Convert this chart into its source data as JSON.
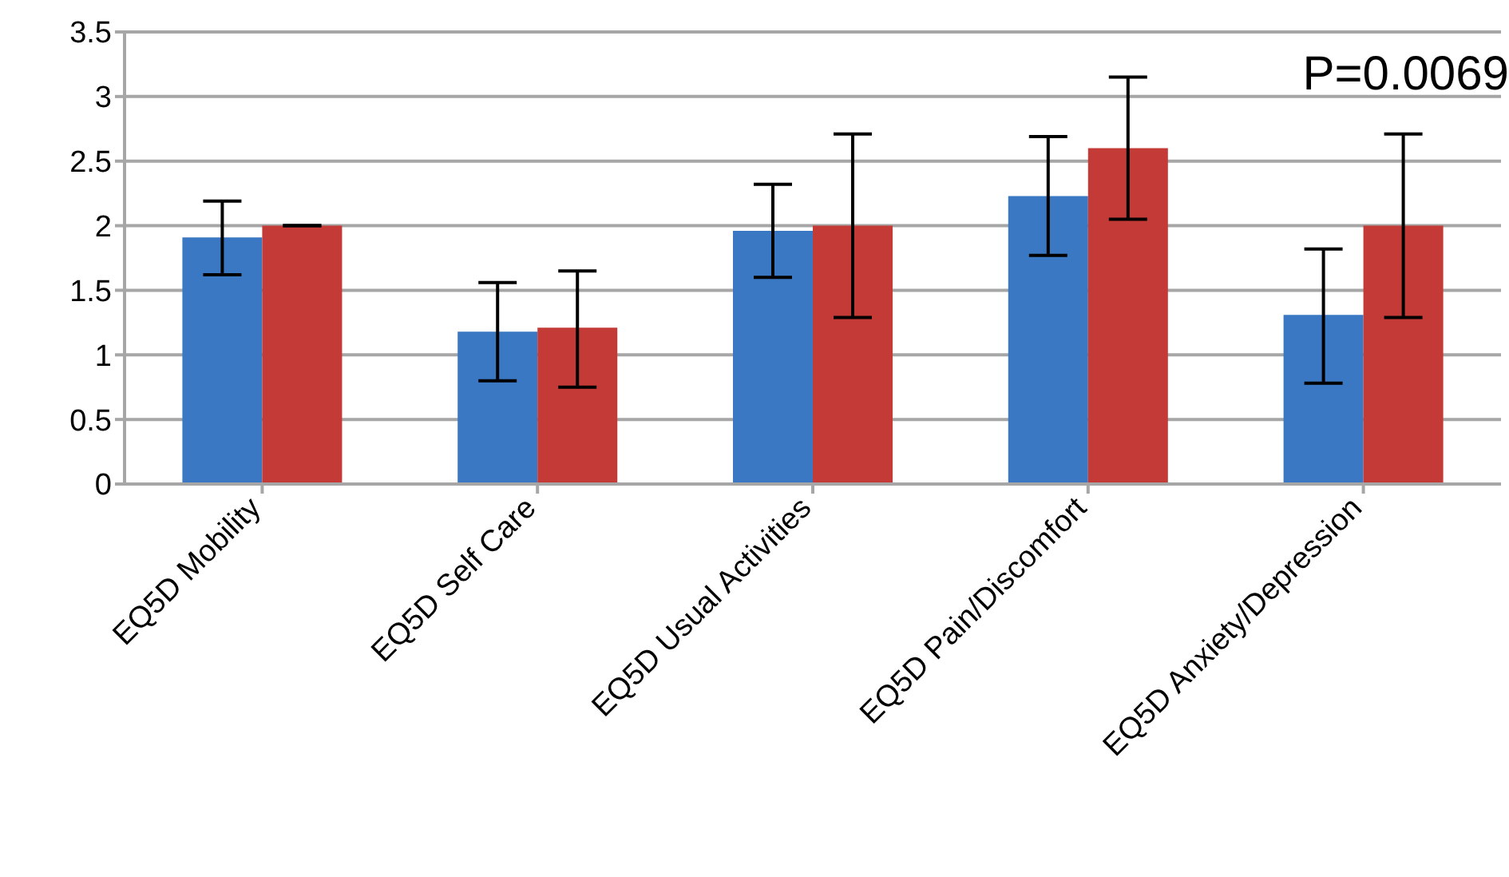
{
  "chart_data": {
    "type": "bar",
    "categories": [
      "EQ5D Mobility",
      "EQ5D Self Care",
      "EQ5D Usual Activities",
      "EQ5D Pain/Discomfort",
      "EQ5D Anxiety/Depression"
    ],
    "series": [
      {
        "color": "#3a78c4",
        "values": [
          1.91,
          1.18,
          1.96,
          2.23,
          1.31
        ],
        "errors": [
          [
            1.62,
            2.19
          ],
          [
            0.8,
            1.56
          ],
          [
            1.6,
            2.32
          ],
          [
            1.77,
            2.69
          ],
          [
            0.78,
            1.82
          ]
        ]
      },
      {
        "color": "#c43a36",
        "values": [
          2.0,
          1.21,
          2.0,
          2.6,
          2.0
        ],
        "errors": [
          [
            2.0,
            2.0
          ],
          [
            0.75,
            1.65
          ],
          [
            1.29,
            2.71
          ],
          [
            2.05,
            3.15
          ],
          [
            1.29,
            2.71
          ]
        ]
      }
    ],
    "ylim": [
      0,
      3.5
    ],
    "yticks": [
      0,
      0.5,
      1,
      1.5,
      2,
      2.5,
      3,
      3.5
    ],
    "grid": "y",
    "annotations": [
      "P=0.0069"
    ]
  }
}
